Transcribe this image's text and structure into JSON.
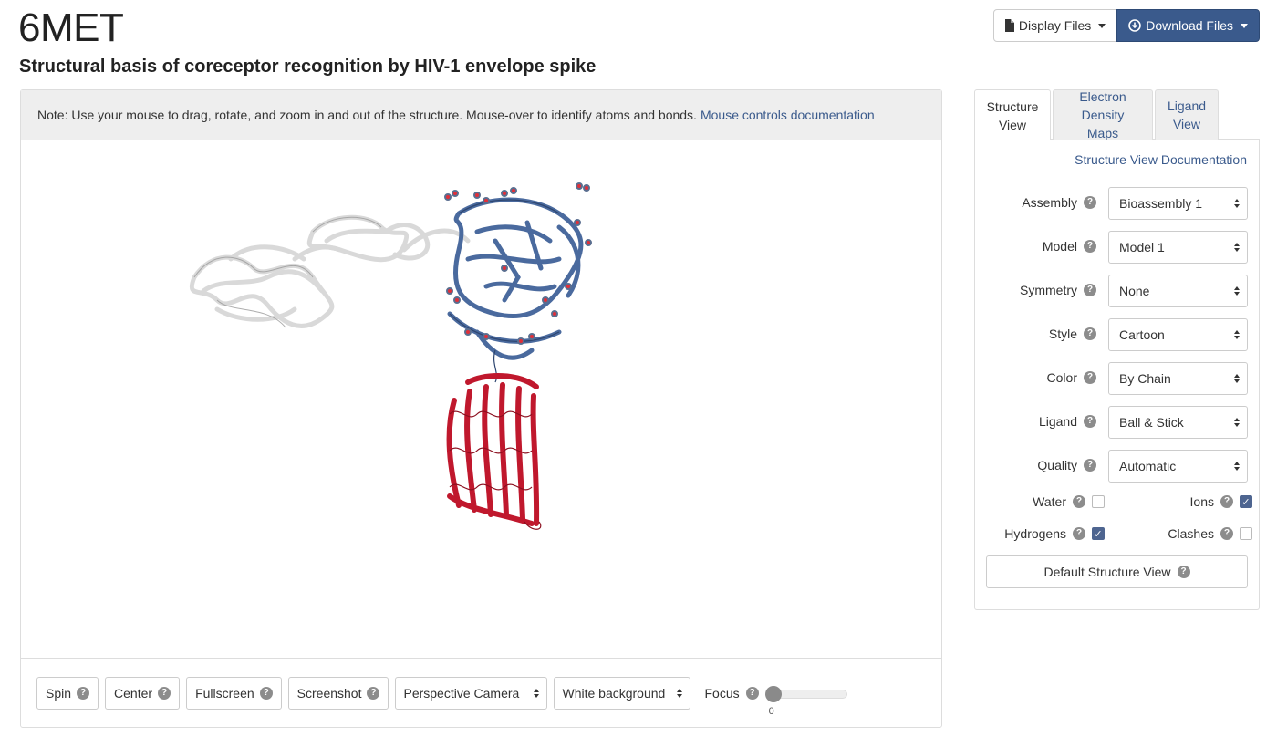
{
  "header": {
    "pdb_id": "6MET",
    "title": "Structural basis of coreceptor recognition by HIV-1 envelope spike",
    "display_files_label": "Display Files",
    "download_files_label": "Download Files"
  },
  "viewer": {
    "note_text": "Note: Use your mouse to drag, rotate, and zoom in and out of the structure. Mouse-over to identify atoms and bonds.",
    "note_link": "Mouse controls documentation",
    "structure_colors": {
      "light_chain": "#dedede",
      "blue_chain": "#4a6a9e",
      "red_chain": "#c0182d",
      "ligand_oxygen": "#e0303a"
    },
    "controls": {
      "spin": "Spin",
      "center": "Center",
      "fullscreen": "Fullscreen",
      "screenshot": "Screenshot",
      "camera": "Perspective Camera",
      "background": "White background",
      "focus_label": "Focus",
      "focus_value": "0"
    }
  },
  "side_panel": {
    "tabs": [
      {
        "line1": "Structure",
        "line2": "View"
      },
      {
        "line1": "Electron",
        "line2": "Density Maps"
      },
      {
        "line1": "Ligand",
        "line2": "View"
      }
    ],
    "doc_link": "Structure View Documentation",
    "options": [
      {
        "label": "Assembly",
        "value": "Bioassembly 1"
      },
      {
        "label": "Model",
        "value": "Model 1"
      },
      {
        "label": "Symmetry",
        "value": "None"
      },
      {
        "label": "Style",
        "value": "Cartoon"
      },
      {
        "label": "Color",
        "value": "By Chain"
      },
      {
        "label": "Ligand",
        "value": "Ball & Stick"
      },
      {
        "label": "Quality",
        "value": "Automatic"
      }
    ],
    "checks": {
      "water": "Water",
      "ions": "Ions",
      "hydrogens": "Hydrogens",
      "clashes": "Clashes"
    },
    "default_button": "Default Structure View"
  },
  "colors": {
    "link": "#3a5a8c",
    "primary_button": "#3a5a8c",
    "checkbox_checked": "#4e6590"
  }
}
